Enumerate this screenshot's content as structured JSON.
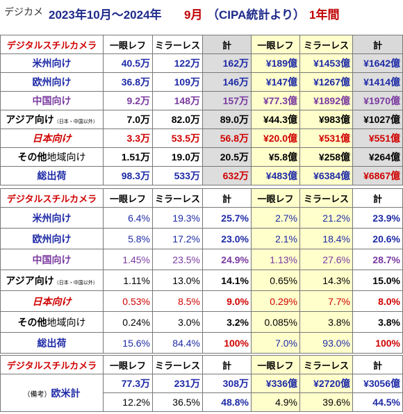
{
  "title": {
    "prefix": "デジカメ",
    "period_a": "2023年10月～2024年",
    "period_b": "9月",
    "source": "（CIPA統計より）",
    "span": "1年間"
  },
  "headers": {
    "corner": "デジタルスチルカメラ",
    "slr": "一眼レフ",
    "mirrorless": "ミラーレス",
    "total": "計"
  },
  "rows": {
    "us": "米州向け",
    "eu": "欧州向け",
    "cn": "中国向け",
    "asia_main": "アジア向け",
    "asia_note": "（日本・中国以外）",
    "jp": "日本向け",
    "other_a": "その他",
    "other_b": "地域向け",
    "total": "総出荷",
    "euam_note": "（備考）",
    "euam": "欧米計"
  },
  "units_table": [
    [
      "40.5万",
      "122万",
      "162万",
      "¥189億",
      "¥1453億",
      "¥1642億"
    ],
    [
      "36.8万",
      "109万",
      "146万",
      "¥147億",
      "¥1267億",
      "¥1414億"
    ],
    [
      "9.2万",
      "148万",
      "157万",
      "¥77.3億",
      "¥1892億",
      "¥1970億"
    ],
    [
      "7.0万",
      "82.0万",
      "89.0万",
      "¥44.3億",
      "¥983億",
      "¥1027億"
    ],
    [
      "3.3万",
      "53.5万",
      "56.8万",
      "¥20.0億",
      "¥531億",
      "¥551億"
    ],
    [
      "1.51万",
      "19.0万",
      "20.5万",
      "¥5.8億",
      "¥258億",
      "¥264億"
    ],
    [
      "98.3万",
      "533万",
      "632万",
      "¥483億",
      "¥6384億",
      "¥6867億"
    ]
  ],
  "share_table": [
    [
      "6.4%",
      "19.3%",
      "25.7%",
      "2.7%",
      "21.2%",
      "23.9%"
    ],
    [
      "5.8%",
      "17.2%",
      "23.0%",
      "2.1%",
      "18.4%",
      "20.6%"
    ],
    [
      "1.45%",
      "23.5%",
      "24.9%",
      "1.13%",
      "27.6%",
      "28.7%"
    ],
    [
      "1.11%",
      "13.0%",
      "14.1%",
      "0.65%",
      "14.3%",
      "15.0%"
    ],
    [
      "0.53%",
      "8.5%",
      "9.0%",
      "0.29%",
      "7.7%",
      "8.0%"
    ],
    [
      "0.24%",
      "3.0%",
      "3.2%",
      "0.085%",
      "3.8%",
      "3.8%"
    ],
    [
      "15.6%",
      "84.4%",
      "100%",
      "7.0%",
      "93.0%",
      "100%"
    ]
  ],
  "euam_table": [
    [
      "77.3万",
      "231万",
      "308万",
      "¥336億",
      "¥2720億",
      "¥3056億"
    ],
    [
      "12.2%",
      "36.5%",
      "48.8%",
      "4.9%",
      "39.6%",
      "44.5%"
    ]
  ],
  "colors": {
    "blue": "#1e2aa6",
    "purple": "#7a3aa0",
    "red": "#d00000",
    "yellow_bg": "#ffffcc",
    "gray_bg": "#dddddd"
  }
}
